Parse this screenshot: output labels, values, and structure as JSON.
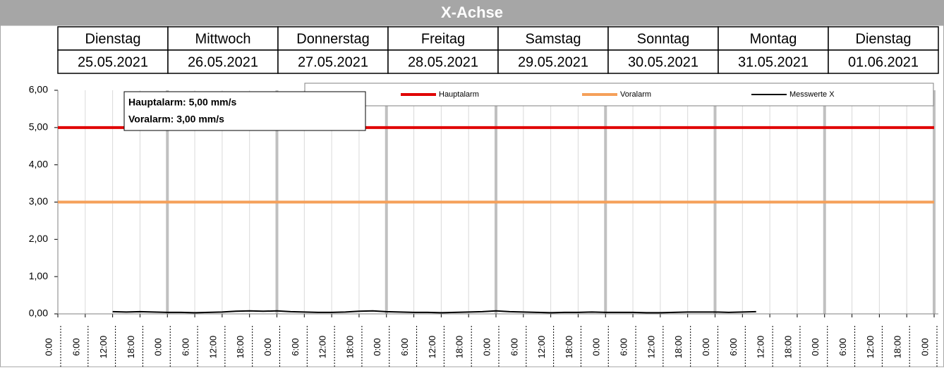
{
  "header": {
    "title": "X-Achse",
    "days": [
      "Dienstag",
      "Mittwoch",
      "Donnerstag",
      "Freitag",
      "Samstag",
      "Sonntag",
      "Montag",
      "Dienstag"
    ],
    "dates": [
      "25.05.2021",
      "26.05.2021",
      "27.05.2021",
      "28.05.2021",
      "29.05.2021",
      "30.05.2021",
      "31.05.2021",
      "01.06.2021"
    ]
  },
  "chart_data": {
    "type": "line",
    "annotations": [
      "Hauptalarm: 5,00 mm/s",
      "Voralarm: 3,00 mm/s"
    ],
    "xlim": [
      0,
      192
    ],
    "ylim": [
      0,
      6
    ],
    "yticks": [
      {
        "value": 0,
        "label": "0,00"
      },
      {
        "value": 1,
        "label": "1,00"
      },
      {
        "value": 2,
        "label": "2,00"
      },
      {
        "value": 3,
        "label": "3,00"
      },
      {
        "value": 4,
        "label": "4,00"
      },
      {
        "value": 5,
        "label": "5,00"
      },
      {
        "value": 6,
        "label": "6,00"
      }
    ],
    "xticks": [
      {
        "value": 0,
        "label": "0:00"
      },
      {
        "value": 6,
        "label": "6:00"
      },
      {
        "value": 12,
        "label": "12:00"
      },
      {
        "value": 18,
        "label": "18:00"
      },
      {
        "value": 24,
        "label": "0:00"
      },
      {
        "value": 30,
        "label": "6:00"
      },
      {
        "value": 36,
        "label": "12:00"
      },
      {
        "value": 42,
        "label": "18:00"
      },
      {
        "value": 48,
        "label": "0:00"
      },
      {
        "value": 54,
        "label": "6:00"
      },
      {
        "value": 60,
        "label": "12:00"
      },
      {
        "value": 66,
        "label": "18:00"
      },
      {
        "value": 72,
        "label": "0:00"
      },
      {
        "value": 78,
        "label": "6:00"
      },
      {
        "value": 84,
        "label": "12:00"
      },
      {
        "value": 90,
        "label": "18:00"
      },
      {
        "value": 96,
        "label": "0:00"
      },
      {
        "value": 102,
        "label": "6:00"
      },
      {
        "value": 108,
        "label": "12:00"
      },
      {
        "value": 114,
        "label": "18:00"
      },
      {
        "value": 120,
        "label": "0:00"
      },
      {
        "value": 126,
        "label": "6:00"
      },
      {
        "value": 132,
        "label": "12:00"
      },
      {
        "value": 138,
        "label": "18:00"
      },
      {
        "value": 144,
        "label": "0:00"
      },
      {
        "value": 150,
        "label": "6:00"
      },
      {
        "value": 156,
        "label": "12:00"
      },
      {
        "value": 162,
        "label": "18:00"
      },
      {
        "value": 168,
        "label": "0:00"
      },
      {
        "value": 174,
        "label": "6:00"
      },
      {
        "value": 180,
        "label": "12:00"
      },
      {
        "value": 186,
        "label": "18:00"
      },
      {
        "value": 192,
        "label": "0:00"
      }
    ],
    "grid": true,
    "series": [
      {
        "name": "Hauptalarm",
        "color": "#e00000",
        "x": [
          0,
          192
        ],
        "values": [
          5,
          5
        ]
      },
      {
        "name": "Voralarm",
        "color": "#f5a05a",
        "x": [
          0,
          192
        ],
        "values": [
          3,
          3
        ]
      },
      {
        "name": "Messwerte X",
        "color": "#000000",
        "x": [
          12,
          15,
          18,
          21,
          24,
          27,
          30,
          33,
          36,
          39,
          42,
          45,
          48,
          51,
          54,
          57,
          60,
          63,
          66,
          69,
          72,
          75,
          78,
          81,
          84,
          87,
          90,
          93,
          96,
          99,
          102,
          105,
          108,
          111,
          114,
          117,
          120,
          123,
          126,
          129,
          132,
          135,
          138,
          141,
          144,
          147,
          150,
          153
        ],
        "values": [
          0.06,
          0.05,
          0.06,
          0.05,
          0.04,
          0.04,
          0.03,
          0.04,
          0.05,
          0.07,
          0.08,
          0.07,
          0.08,
          0.06,
          0.05,
          0.04,
          0.04,
          0.05,
          0.07,
          0.08,
          0.06,
          0.05,
          0.04,
          0.04,
          0.03,
          0.04,
          0.05,
          0.06,
          0.08,
          0.06,
          0.05,
          0.04,
          0.03,
          0.04,
          0.04,
          0.05,
          0.04,
          0.04,
          0.04,
          0.03,
          0.03,
          0.04,
          0.05,
          0.05,
          0.05,
          0.04,
          0.05,
          0.06
        ]
      }
    ]
  }
}
